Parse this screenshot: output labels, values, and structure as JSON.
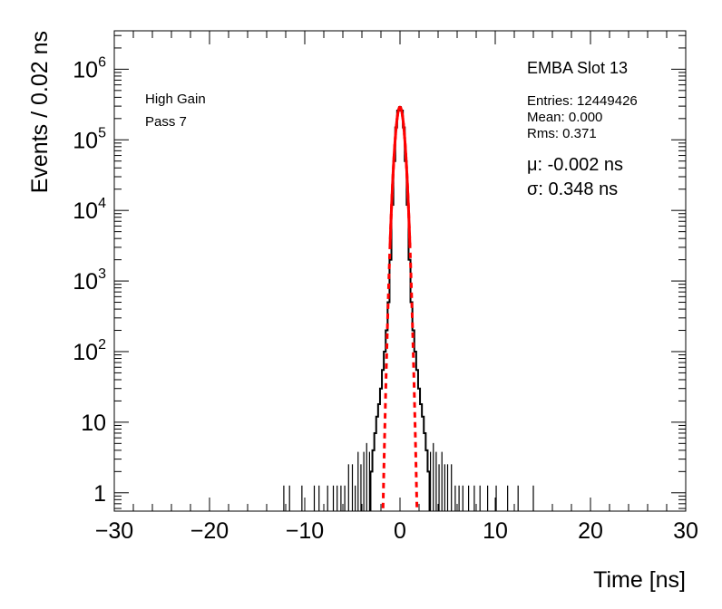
{
  "chart_data": {
    "type": "line",
    "title": "EMBA Slot 13",
    "xlabel": "Time [ns]",
    "ylabel": "Events / 0.02 ns",
    "xlim": [
      -30,
      30
    ],
    "ylog": true,
    "ylim": [
      0.55,
      3500000
    ],
    "x_ticks": [
      -30,
      -20,
      -10,
      0,
      10,
      20,
      30
    ],
    "x_tick_labels": [
      "−30",
      "−20",
      "−10",
      "0",
      "10",
      "20",
      "30"
    ],
    "y_ticks": [
      1,
      10,
      100,
      1000,
      10000,
      100000,
      1000000
    ],
    "y_tick_labels": [
      {
        "base": "1",
        "exp": ""
      },
      {
        "base": "10",
        "exp": ""
      },
      {
        "base": "10",
        "exp": "2"
      },
      {
        "base": "10",
        "exp": "3"
      },
      {
        "base": "10",
        "exp": "4"
      },
      {
        "base": "10",
        "exp": "5"
      },
      {
        "base": "10",
        "exp": "6"
      }
    ],
    "annotations": {
      "gain": "High Gain",
      "pass": "Pass 7",
      "entries": "Entries: 12449426",
      "mean": "Mean: 0.000",
      "rms": "Rms: 0.371",
      "mu": "μ: -0.002 ns",
      "sigma": "σ: 0.348 ns"
    },
    "series": [
      {
        "kind": "histogram",
        "color": "#000000",
        "core_points": [
          [
            -3.0,
            2
          ],
          [
            -2.8,
            4
          ],
          [
            -2.6,
            7
          ],
          [
            -2.4,
            12
          ],
          [
            -2.2,
            18
          ],
          [
            -2.0,
            30
          ],
          [
            -1.8,
            55
          ],
          [
            -1.6,
            100
          ],
          [
            -1.4,
            200
          ],
          [
            -1.2,
            500
          ],
          [
            -1.0,
            2000
          ],
          [
            -0.8,
            12000
          ],
          [
            -0.6,
            50000
          ],
          [
            -0.4,
            150000
          ],
          [
            -0.2,
            260000
          ],
          [
            0.0,
            290000
          ],
          [
            0.2,
            260000
          ],
          [
            0.4,
            150000
          ],
          [
            0.6,
            50000
          ],
          [
            0.8,
            12000
          ],
          [
            1.0,
            2000
          ],
          [
            1.2,
            500
          ],
          [
            1.4,
            200
          ],
          [
            1.6,
            100
          ],
          [
            1.8,
            55
          ],
          [
            2.0,
            30
          ],
          [
            2.2,
            18
          ],
          [
            2.4,
            12
          ],
          [
            2.6,
            7
          ],
          [
            2.8,
            4
          ],
          [
            3.0,
            2
          ]
        ],
        "tail_points": [
          [
            -12.2,
            1
          ],
          [
            -11.6,
            1
          ],
          [
            -10.3,
            1
          ],
          [
            -9.0,
            1
          ],
          [
            -8.5,
            1
          ],
          [
            -7.6,
            1
          ],
          [
            -7.0,
            1
          ],
          [
            -6.6,
            1
          ],
          [
            -6.2,
            1
          ],
          [
            -5.8,
            1
          ],
          [
            -5.4,
            2
          ],
          [
            -5.0,
            2
          ],
          [
            -4.7,
            1
          ],
          [
            -4.4,
            3
          ],
          [
            -4.1,
            2
          ],
          [
            -3.8,
            3
          ],
          [
            -3.5,
            4
          ],
          [
            -3.2,
            3
          ],
          [
            3.2,
            3
          ],
          [
            3.5,
            4
          ],
          [
            3.8,
            3
          ],
          [
            4.1,
            2
          ],
          [
            4.4,
            3
          ],
          [
            4.7,
            2
          ],
          [
            5.0,
            2
          ],
          [
            5.4,
            2
          ],
          [
            5.8,
            1
          ],
          [
            6.2,
            1
          ],
          [
            6.6,
            1
          ],
          [
            7.2,
            1
          ],
          [
            7.8,
            1
          ],
          [
            8.4,
            1
          ],
          [
            9.2,
            1
          ],
          [
            10.1,
            1
          ],
          [
            11.3,
            1
          ],
          [
            12.4,
            1
          ],
          [
            14.0,
            1
          ]
        ]
      },
      {
        "kind": "gaussian fit",
        "color": "#ff0000",
        "mean": -0.002,
        "sigma": 0.348,
        "peak": 290000,
        "dashed_outside": [
          -1.8,
          1.8
        ],
        "solid_range": [
          -1.05,
          1.05
        ]
      }
    ]
  }
}
